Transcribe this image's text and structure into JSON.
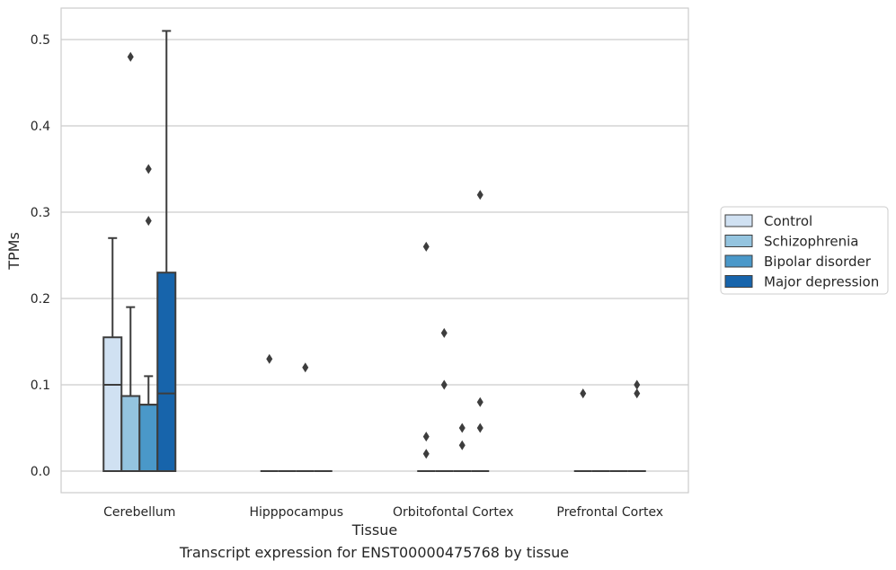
{
  "caption": "Transcript expression for ENST00000475768 by tissue",
  "chart_data": {
    "type": "box",
    "title": "",
    "xlabel": "Tissue",
    "ylabel": "TPMs",
    "ylim": [
      -0.025,
      0.537
    ],
    "yticks": [
      0.0,
      0.1,
      0.2,
      0.3,
      0.4,
      0.5
    ],
    "ytick_labels": [
      "0.0",
      "0.1",
      "0.2",
      "0.3",
      "0.4",
      "0.5"
    ],
    "grid": "horizontal",
    "legend_position": "right",
    "categories": [
      "Cerebellum",
      "Hipppocampus",
      "Orbitofontal Cortex",
      "Prefrontal Cortex"
    ],
    "series": [
      {
        "name": "Control",
        "color": "#d0e1f2",
        "boxes": [
          {
            "q1": 0.0,
            "median": 0.1,
            "q3": 0.155,
            "whisker_low": 0.0,
            "whisker_high": 0.27,
            "outliers": []
          },
          {
            "q1": 0.0,
            "median": 0.0,
            "q3": 0.0,
            "whisker_low": 0.0,
            "whisker_high": 0.0,
            "outliers": [
              0.13
            ]
          },
          {
            "q1": 0.0,
            "median": 0.0,
            "q3": 0.0,
            "whisker_low": 0.0,
            "whisker_high": 0.0,
            "outliers": [
              0.26,
              0.04,
              0.02
            ]
          },
          {
            "q1": 0.0,
            "median": 0.0,
            "q3": 0.0,
            "whisker_low": 0.0,
            "whisker_high": 0.0,
            "outliers": [
              0.09
            ]
          }
        ]
      },
      {
        "name": "Schizophrenia",
        "color": "#94c4df",
        "boxes": [
          {
            "q1": 0.0,
            "median": 0.087,
            "q3": 0.087,
            "whisker_low": 0.0,
            "whisker_high": 0.19,
            "outliers": [
              0.48
            ]
          },
          {
            "q1": 0.0,
            "median": 0.0,
            "q3": 0.0,
            "whisker_low": 0.0,
            "whisker_high": 0.0,
            "outliers": []
          },
          {
            "q1": 0.0,
            "median": 0.0,
            "q3": 0.0,
            "whisker_low": 0.0,
            "whisker_high": 0.0,
            "outliers": [
              0.16,
              0.1
            ]
          },
          {
            "q1": 0.0,
            "median": 0.0,
            "q3": 0.0,
            "whisker_low": 0.0,
            "whisker_high": 0.0,
            "outliers": []
          }
        ]
      },
      {
        "name": "Bipolar disorder",
        "color": "#4a98c9",
        "boxes": [
          {
            "q1": 0.0,
            "median": 0.077,
            "q3": 0.077,
            "whisker_low": 0.0,
            "whisker_high": 0.11,
            "outliers": [
              0.35,
              0.29
            ]
          },
          {
            "q1": 0.0,
            "median": 0.0,
            "q3": 0.0,
            "whisker_low": 0.0,
            "whisker_high": 0.0,
            "outliers": [
              0.12
            ]
          },
          {
            "q1": 0.0,
            "median": 0.0,
            "q3": 0.0,
            "whisker_low": 0.0,
            "whisker_high": 0.0,
            "outliers": [
              0.05,
              0.03
            ]
          },
          {
            "q1": 0.0,
            "median": 0.0,
            "q3": 0.0,
            "whisker_low": 0.0,
            "whisker_high": 0.0,
            "outliers": []
          }
        ]
      },
      {
        "name": "Major depression",
        "color": "#1764ab",
        "boxes": [
          {
            "q1": 0.0,
            "median": 0.09,
            "q3": 0.23,
            "whisker_low": 0.0,
            "whisker_high": 0.51,
            "outliers": []
          },
          {
            "q1": 0.0,
            "median": 0.0,
            "q3": 0.0,
            "whisker_low": 0.0,
            "whisker_high": 0.0,
            "outliers": []
          },
          {
            "q1": 0.0,
            "median": 0.0,
            "q3": 0.0,
            "whisker_low": 0.0,
            "whisker_high": 0.0,
            "outliers": [
              0.32,
              0.08,
              0.05
            ]
          },
          {
            "q1": 0.0,
            "median": 0.0,
            "q3": 0.0,
            "whisker_low": 0.0,
            "whisker_high": 0.0,
            "outliers": [
              0.1,
              0.09
            ]
          }
        ]
      }
    ]
  }
}
